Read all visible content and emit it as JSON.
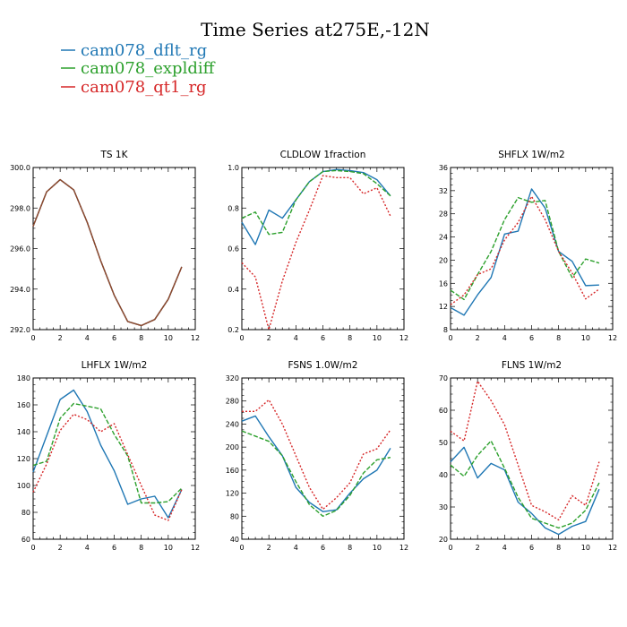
{
  "title": "Time Series at275E,-12N",
  "legend": [
    {
      "name": "cam078_dflt_rg",
      "color": "#1f77b4",
      "dash": "solid"
    },
    {
      "name": "cam078_expldiff",
      "color": "#2ca02c",
      "dash": "dashed"
    },
    {
      "name": "cam078_qt1_rg",
      "color": "#d62728",
      "dash": "dotted"
    }
  ],
  "chart_data": [
    {
      "type": "line",
      "title": "TS   1K",
      "x": [
        0,
        1,
        2,
        3,
        4,
        5,
        6,
        7,
        8,
        9,
        10,
        11
      ],
      "xlim": [
        0,
        12
      ],
      "ylim": [
        292.0,
        300.0
      ],
      "xticks": [
        0,
        2,
        4,
        6,
        8,
        10,
        12
      ],
      "yticks": [
        292.0,
        294.0,
        296.0,
        298.0,
        300.0
      ],
      "ytick_labels": [
        "292.0",
        "294.0",
        "296.0",
        "298.0",
        "300.0"
      ],
      "series": [
        {
          "name": "cam078_dflt_rg",
          "values": [
            297.1,
            298.8,
            299.4,
            298.9,
            297.3,
            295.4,
            293.7,
            292.4,
            292.2,
            292.5,
            293.5,
            295.1
          ]
        },
        {
          "name": "cam078_expldiff",
          "values": [
            297.1,
            298.8,
            299.4,
            298.9,
            297.3,
            295.4,
            293.7,
            292.4,
            292.2,
            292.5,
            293.5,
            295.1
          ]
        },
        {
          "name": "cam078_qt1_rg",
          "values": [
            297.1,
            298.8,
            299.4,
            298.9,
            297.3,
            295.4,
            293.7,
            292.4,
            292.2,
            292.5,
            293.5,
            295.1
          ]
        }
      ]
    },
    {
      "type": "line",
      "title": "CLDLOW   1fraction",
      "x": [
        0,
        1,
        2,
        3,
        4,
        5,
        6,
        7,
        8,
        9,
        10,
        11
      ],
      "xlim": [
        0,
        12
      ],
      "ylim": [
        0.2,
        1.0
      ],
      "xticks": [
        0,
        2,
        4,
        6,
        8,
        10,
        12
      ],
      "yticks": [
        0.2,
        0.4,
        0.6,
        0.8,
        1.0
      ],
      "ytick_labels": [
        "0.2",
        "0.4",
        "0.6",
        "0.8",
        "1.0"
      ],
      "series": [
        {
          "name": "cam078_dflt_rg",
          "values": [
            0.73,
            0.62,
            0.79,
            0.75,
            0.84,
            0.93,
            0.98,
            0.99,
            0.985,
            0.975,
            0.94,
            0.86
          ]
        },
        {
          "name": "cam078_expldiff",
          "values": [
            0.75,
            0.78,
            0.67,
            0.68,
            0.84,
            0.93,
            0.98,
            0.985,
            0.98,
            0.97,
            0.92,
            0.86
          ]
        },
        {
          "name": "cam078_qt1_rg",
          "values": [
            0.53,
            0.46,
            0.2,
            0.44,
            0.63,
            0.79,
            0.96,
            0.95,
            0.95,
            0.87,
            0.9,
            0.76
          ]
        }
      ]
    },
    {
      "type": "line",
      "title": "SHFLX   1W/m2",
      "x": [
        0,
        1,
        2,
        3,
        4,
        5,
        6,
        7,
        8,
        9,
        10,
        11
      ],
      "xlim": [
        0,
        12
      ],
      "ylim": [
        8,
        36
      ],
      "xticks": [
        0,
        2,
        4,
        6,
        8,
        10,
        12
      ],
      "yticks": [
        8,
        12,
        16,
        20,
        24,
        28,
        32,
        36
      ],
      "ytick_labels": [
        "8",
        "12",
        "16",
        "20",
        "24",
        "28",
        "32",
        "36"
      ],
      "series": [
        {
          "name": "cam078_dflt_rg",
          "values": [
            11.8,
            10.5,
            14.0,
            17.0,
            24.5,
            25.0,
            32.3,
            29.0,
            21.5,
            19.8,
            15.6,
            15.7
          ]
        },
        {
          "name": "cam078_expldiff",
          "values": [
            14.8,
            13.2,
            17.5,
            21.5,
            27.0,
            30.8,
            30.0,
            30.3,
            21.5,
            17.0,
            20.2,
            19.5
          ]
        },
        {
          "name": "cam078_qt1_rg",
          "values": [
            12.3,
            14.0,
            17.5,
            18.5,
            23.5,
            26.5,
            31.0,
            27.0,
            21.5,
            17.8,
            13.3,
            15.0
          ]
        }
      ]
    },
    {
      "type": "line",
      "title": "LHFLX   1W/m2",
      "x": [
        0,
        1,
        2,
        3,
        4,
        5,
        6,
        7,
        8,
        9,
        10,
        11
      ],
      "xlim": [
        0,
        12
      ],
      "ylim": [
        60,
        180
      ],
      "xticks": [
        0,
        2,
        4,
        6,
        8,
        10,
        12
      ],
      "yticks": [
        60,
        80,
        100,
        120,
        140,
        160,
        180
      ],
      "ytick_labels": [
        "60",
        "80",
        "100",
        "120",
        "140",
        "160",
        "180"
      ],
      "series": [
        {
          "name": "cam078_dflt_rg",
          "values": [
            110,
            137,
            164,
            171,
            155,
            130,
            111,
            86,
            90,
            92,
            76,
            97
          ]
        },
        {
          "name": "cam078_expldiff",
          "values": [
            115,
            118,
            150,
            161,
            159,
            157,
            138,
            122,
            87,
            87,
            88,
            98
          ]
        },
        {
          "name": "cam078_qt1_rg",
          "values": [
            95,
            116,
            141,
            153,
            149,
            140,
            146,
            123,
            100,
            78,
            74,
            97
          ]
        }
      ]
    },
    {
      "type": "line",
      "title": "FSNS   1.0W/m2",
      "x": [
        0,
        1,
        2,
        3,
        4,
        5,
        6,
        7,
        8,
        9,
        10,
        11
      ],
      "xlim": [
        0,
        12
      ],
      "ylim": [
        40,
        320
      ],
      "xticks": [
        0,
        2,
        4,
        6,
        8,
        10,
        12
      ],
      "yticks": [
        40,
        80,
        120,
        160,
        200,
        240,
        280,
        320
      ],
      "ytick_labels": [
        "40",
        "80",
        "120",
        "160",
        "200",
        "240",
        "280",
        "320"
      ],
      "series": [
        {
          "name": "cam078_dflt_rg",
          "values": [
            245,
            254,
            218,
            185,
            130,
            104,
            88,
            91,
            120,
            145,
            160,
            198
          ]
        },
        {
          "name": "cam078_expldiff",
          "values": [
            228,
            219,
            210,
            185,
            140,
            100,
            80,
            90,
            116,
            155,
            178,
            182
          ]
        },
        {
          "name": "cam078_qt1_rg",
          "values": [
            262,
            262,
            282,
            240,
            185,
            130,
            92,
            112,
            138,
            188,
            197,
            230
          ]
        }
      ]
    },
    {
      "type": "line",
      "title": "FLNS   1W/m2",
      "x": [
        0,
        1,
        2,
        3,
        4,
        5,
        6,
        7,
        8,
        9,
        10,
        11
      ],
      "xlim": [
        0,
        12
      ],
      "ylim": [
        20,
        70
      ],
      "xticks": [
        0,
        2,
        4,
        6,
        8,
        10,
        12
      ],
      "yticks": [
        20,
        30,
        40,
        50,
        60,
        70
      ],
      "ytick_labels": [
        "20",
        "30",
        "40",
        "50",
        "60",
        "70"
      ],
      "series": [
        {
          "name": "cam078_dflt_rg",
          "values": [
            44,
            48.5,
            39,
            43.5,
            41.5,
            31.5,
            28,
            23.5,
            21.5,
            24,
            25.5,
            35.5
          ]
        },
        {
          "name": "cam078_expldiff",
          "values": [
            43,
            39.5,
            46,
            50.5,
            42,
            33,
            26.5,
            25,
            23.5,
            25,
            29,
            37.5
          ]
        },
        {
          "name": "cam078_qt1_rg",
          "values": [
            53.5,
            50.5,
            69,
            63,
            55.5,
            43,
            30.5,
            28.5,
            26,
            33.5,
            30.5,
            44
          ]
        }
      ]
    }
  ]
}
